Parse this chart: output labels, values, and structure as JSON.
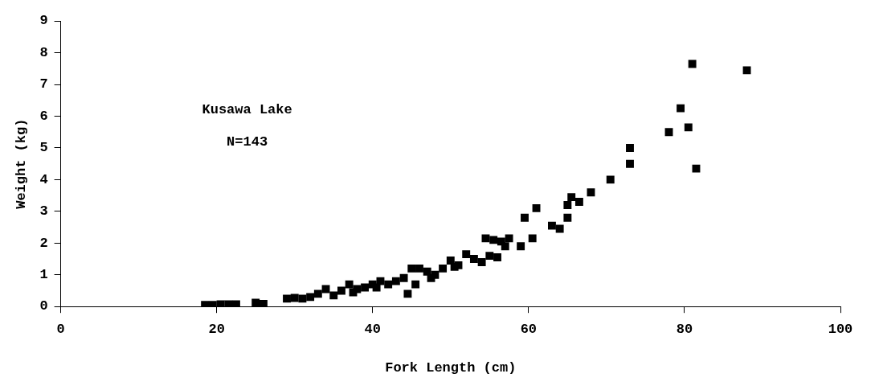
{
  "chart_data": {
    "type": "scatter",
    "xlabel": "Fork Length (cm)",
    "ylabel": "Weight (kg)",
    "annotations": [
      "Kusawa Lake",
      "N=143"
    ],
    "xlim": [
      0,
      100
    ],
    "xticks": [
      0,
      20,
      40,
      60,
      80,
      100
    ],
    "ylim": [
      0,
      9
    ],
    "yticks": [
      0,
      1,
      2,
      3,
      4,
      5,
      6,
      7,
      8,
      9
    ],
    "grid": false,
    "legend": false,
    "marker": "square",
    "series": [
      {
        "color": "#000000",
        "x": [
          18.5,
          19.5,
          20.5,
          21.5,
          22.5,
          25,
          26,
          29,
          30,
          31,
          32,
          33,
          34,
          35,
          36,
          37,
          37.5,
          38,
          39,
          40,
          40.5,
          41,
          42,
          43,
          44,
          44.5,
          45,
          45.5,
          46,
          47,
          47.5,
          48,
          49,
          50,
          50.5,
          51,
          52,
          53,
          54,
          54.5,
          55,
          55.5,
          56,
          56.5,
          57,
          57.5,
          59,
          59.5,
          60.5,
          61,
          63,
          64,
          65,
          65,
          65.5,
          66.5,
          68,
          70.5,
          73,
          73,
          78,
          79.5,
          80.5,
          81,
          81.5,
          88
        ],
        "values": [
          0.05,
          0.05,
          0.07,
          0.07,
          0.07,
          0.12,
          0.08,
          0.25,
          0.27,
          0.25,
          0.3,
          0.4,
          0.55,
          0.35,
          0.5,
          0.7,
          0.45,
          0.55,
          0.6,
          0.7,
          0.6,
          0.8,
          0.7,
          0.8,
          0.9,
          0.4,
          1.2,
          0.7,
          1.2,
          1.1,
          0.9,
          1.0,
          1.2,
          1.45,
          1.25,
          1.3,
          1.65,
          1.5,
          1.4,
          2.15,
          1.6,
          2.1,
          1.55,
          2.05,
          1.9,
          2.15,
          1.9,
          2.8,
          2.15,
          3.1,
          2.55,
          2.45,
          2.8,
          3.2,
          3.45,
          3.3,
          3.6,
          4.0,
          4.5,
          5.0,
          5.5,
          6.25,
          5.65,
          7.65,
          4.35,
          7.45
        ]
      }
    ]
  }
}
